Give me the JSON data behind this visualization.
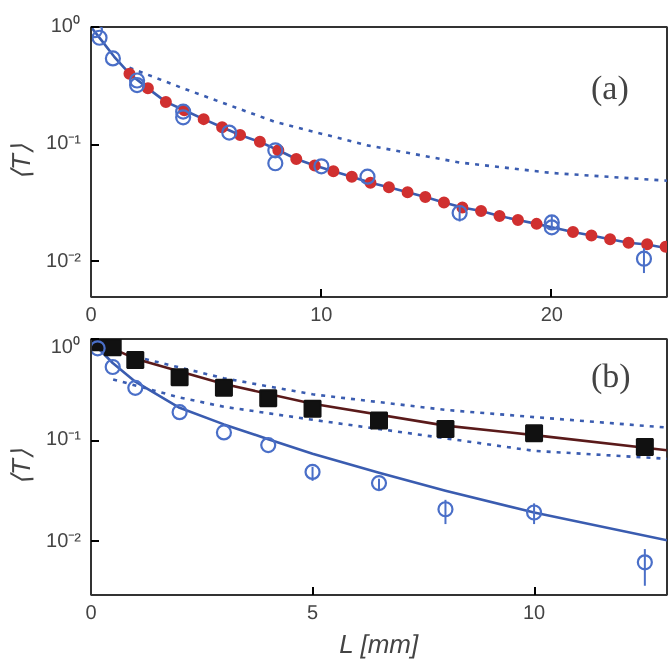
{
  "chart_data": [
    {
      "type": "scatter",
      "ylabel": "⟨T⟩",
      "annotations": [
        "(a)"
      ],
      "log": "y",
      "grid": false,
      "xlim": [
        0,
        25
      ],
      "ylim": [
        0.005,
        1
      ],
      "xticks": [
        0,
        10,
        20
      ],
      "yticks": [
        {
          "value": 0.01,
          "label": "10⁻²"
        },
        {
          "value": 0.1,
          "label": "10⁻¹"
        },
        {
          "value": 1,
          "label": "10⁰"
        }
      ],
      "series": [
        {
          "type": "line",
          "color": "#3a5cb0",
          "line_style": "dotted",
          "x": [
            1.67,
            4,
            8,
            12,
            16,
            20,
            25
          ],
          "values": [
            0.45,
            0.3,
            0.155,
            0.098,
            0.07,
            0.057,
            0.049
          ]
        },
        {
          "type": "line",
          "color": "#3a5cb0",
          "line_style": "solid",
          "x": [
            0,
            0.5,
            1,
            1.67,
            2.47,
            3.25,
            4.05,
            4.89,
            5.69,
            6.47,
            7.33,
            8.13,
            8.91,
            9.71,
            10.52,
            11.32,
            12.13,
            12.93,
            13.74,
            14.51,
            15.32,
            16.12,
            16.93,
            17.73,
            18.53,
            19.34,
            20.14,
            20.92,
            21.72,
            22.53,
            23.33,
            24.14,
            25
          ],
          "values": [
            1,
            0.75,
            0.56,
            0.4,
            0.3,
            0.23,
            0.195,
            0.164,
            0.14,
            0.12,
            0.105,
            0.089,
            0.075,
            0.066,
            0.059,
            0.053,
            0.047,
            0.043,
            0.039,
            0.0355,
            0.032,
            0.029,
            0.027,
            0.0245,
            0.0227,
            0.021,
            0.0194,
            0.0179,
            0.0167,
            0.0155,
            0.0145,
            0.014,
            0.013
          ]
        },
        {
          "color": "#d03030",
          "marker": "circle",
          "x": [
            1.67,
            2.47,
            3.25,
            4.05,
            4.89,
            5.69,
            6.47,
            7.33,
            8.13,
            8.91,
            9.71,
            10.52,
            11.32,
            12.13,
            12.93,
            13.74,
            14.51,
            15.32,
            16.12,
            16.93,
            17.73,
            18.53,
            19.34,
            20.14,
            20.92,
            21.72,
            22.53,
            23.33,
            24.14,
            24.94
          ],
          "values": [
            0.4,
            0.3,
            0.23,
            0.195,
            0.164,
            0.14,
            0.12,
            0.105,
            0.089,
            0.075,
            0.066,
            0.059,
            0.053,
            0.047,
            0.043,
            0.039,
            0.0355,
            0.032,
            0.029,
            0.027,
            0.0245,
            0.0227,
            0.021,
            null,
            0.0179,
            0.0167,
            0.0155,
            0.0145,
            0.0141,
            0.0134
          ]
        },
        {
          "color": "#4a6fc8",
          "marker": "circle",
          "x": [
            0.17,
            0.37,
            0.95,
            2,
            2,
            4,
            4,
            6,
            8,
            8,
            10,
            12,
            16,
            20,
            20,
            24
          ],
          "values": [
            0.94,
            0.81,
            0.54,
            0.35,
            0.32,
            0.19,
            0.17,
            0.126,
            0.089,
            0.069,
            0.065,
            0.053,
            0.026,
            0.0216,
            0.0196,
            0.0106
          ],
          "errors": [
            null,
            null,
            null,
            null,
            null,
            null,
            null,
            null,
            null,
            null,
            null,
            null,
            [
              0.022,
              0.03
            ],
            [
              0.019,
              0.025
            ],
            null,
            [
              0.008,
              0.013
            ]
          ]
        }
      ]
    },
    {
      "type": "scatter",
      "xlabel": "L [mm]",
      "ylabel": "⟨T⟩",
      "annotations": [
        "(b)"
      ],
      "log": "y",
      "grid": false,
      "xlim": [
        0,
        13
      ],
      "ylim": [
        0.003,
        1
      ],
      "xticks": [
        0,
        5,
        10
      ],
      "yticks": [
        {
          "value": 0.01,
          "label": "10⁻²"
        },
        {
          "value": 0.1,
          "label": "10⁻¹"
        },
        {
          "value": 1,
          "label": "10⁰"
        }
      ],
      "series": [
        {
          "type": "line",
          "color": "#3a5cb0",
          "line_style": "dotted",
          "x": [
            1,
            3,
            5,
            8,
            10,
            13
          ],
          "values": [
            0.67,
            0.41,
            0.285,
            0.2,
            0.17,
            0.134
          ]
        },
        {
          "type": "line",
          "color": "#3a5cb0",
          "line_style": "dotted",
          "x": [
            0.5,
            2,
            3,
            5,
            8,
            10,
            13
          ],
          "values": [
            0.4,
            0.265,
            0.215,
            0.16,
            0.105,
            0.079,
            0.066
          ]
        },
        {
          "type": "line",
          "color": "#5a1a1a",
          "line_style": "solid",
          "x": [
            0,
            1,
            3,
            5,
            8,
            10,
            13
          ],
          "values": [
            1,
            0.64,
            0.36,
            0.23,
            0.14,
            0.113,
            0.08
          ]
        },
        {
          "type": "line",
          "color": "#3a5cb0",
          "line_style": "solid",
          "x": [
            0,
            0.49,
            1,
            2,
            3,
            4,
            5,
            6.5,
            8,
            10,
            13
          ],
          "values": [
            0.96,
            0.58,
            0.38,
            0.21,
            0.144,
            0.103,
            0.074,
            0.048,
            0.032,
            0.0195,
            0.0104
          ]
        },
        {
          "color": "#111111",
          "marker": "square",
          "x": [
            0.19,
            0.49,
            1,
            2,
            3,
            4,
            5,
            6.5,
            8,
            10,
            12.5
          ],
          "values": [
            0.93,
            0.83,
            0.62,
            0.42,
            0.33,
            0.26,
            0.205,
            0.157,
            0.13,
            0.118,
            0.086
          ]
        },
        {
          "color": "#4a6fc8",
          "marker": "circle",
          "x": [
            0.15,
            0.49,
            1,
            2,
            3,
            4,
            5,
            6.5,
            8,
            10,
            12.5
          ],
          "values": [
            0.81,
            0.53,
            0.33,
            0.19,
            0.12,
            0.09,
            0.049,
            0.038,
            0.021,
            0.0195,
            0.0063
          ],
          "errors": [
            null,
            null,
            null,
            null,
            null,
            null,
            [
              0.04,
              0.055
            ],
            [
              0.032,
              0.042
            ],
            [
              0.015,
              0.026
            ],
            [
              0.015,
              0.024
            ],
            [
              0.0037,
              0.0085
            ]
          ]
        }
      ]
    }
  ]
}
